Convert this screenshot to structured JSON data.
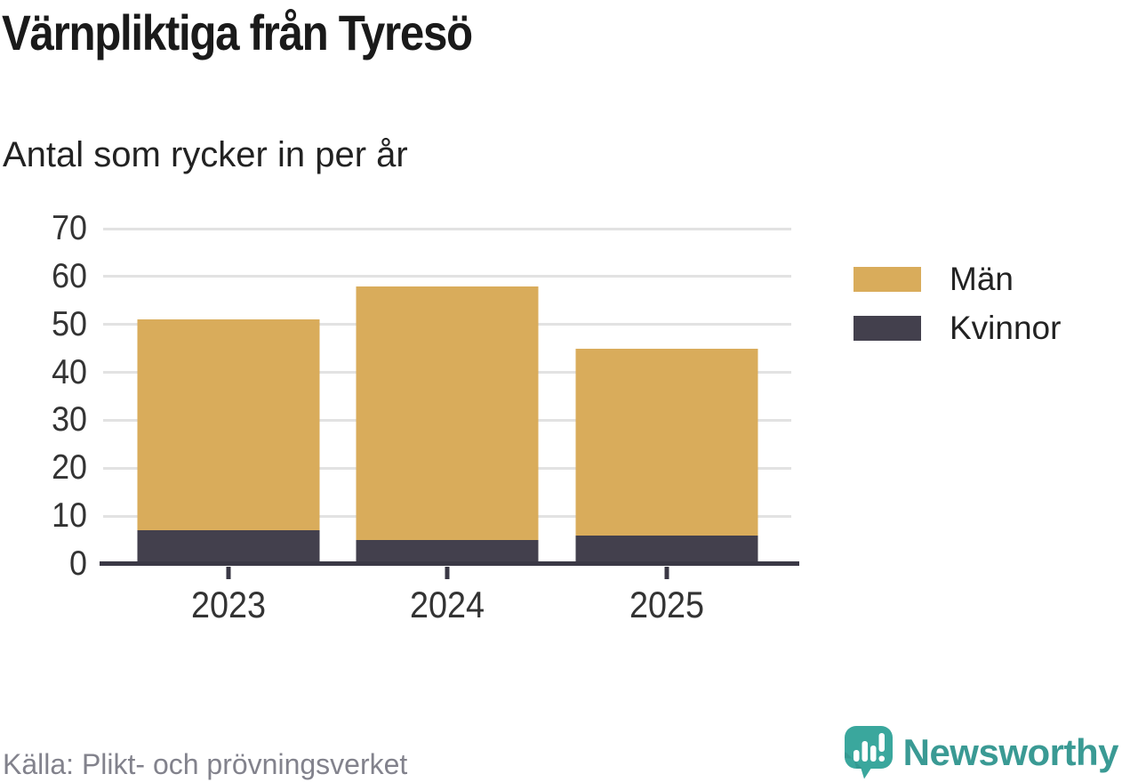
{
  "header": {
    "title": "Värnpliktiga från Tyresö",
    "subtitle": "Antal som rycker in per år"
  },
  "chart_data": {
    "type": "bar",
    "stacked": true,
    "title": "Värnpliktiga från Tyresö",
    "subtitle": "Antal som rycker in per år",
    "categories": [
      "2023",
      "2024",
      "2025"
    ],
    "series": [
      {
        "name": "Män",
        "color": "#d9ac5b",
        "values": [
          44,
          53,
          39
        ]
      },
      {
        "name": "Kvinnor",
        "color": "#43404d",
        "values": [
          7,
          5,
          6
        ]
      }
    ],
    "stack_bottom_to_top": [
      "Kvinnor",
      "Män"
    ],
    "stacked_totals": [
      51,
      58,
      45
    ],
    "ylim": [
      0,
      70
    ],
    "yticks": [
      0,
      10,
      20,
      30,
      40,
      50,
      60,
      70
    ],
    "xlabel": "",
    "ylabel": "",
    "grid": "horizontal",
    "legend_position": "right"
  },
  "legend": {
    "items": [
      {
        "label": "Män",
        "color": "#d9ac5b"
      },
      {
        "label": "Kvinnor",
        "color": "#43404d"
      }
    ]
  },
  "footer": {
    "source": "Källa: Plikt- och prövningsverket",
    "brand": "Newsworthy",
    "brand_color": "#3a9a94",
    "logo_icon": "newsworthy-bar-chart-bubble-icon"
  }
}
